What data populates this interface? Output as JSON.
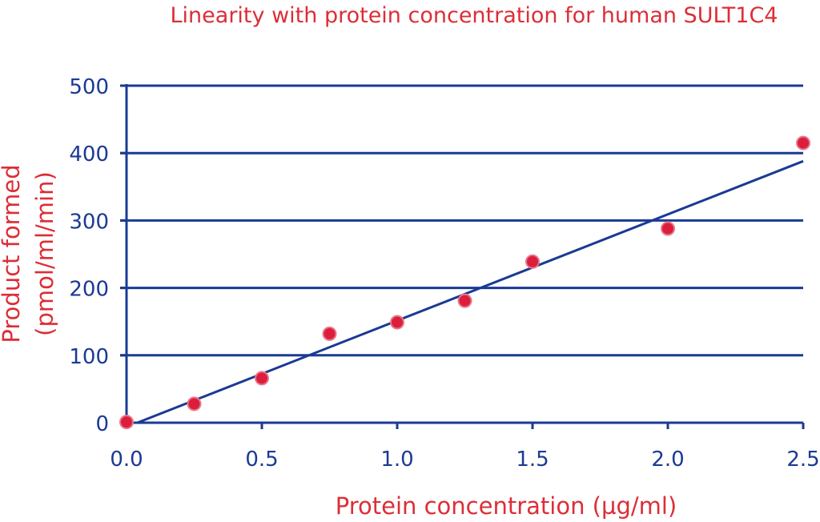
{
  "colors": {
    "axis": "#1a3a94",
    "text_accent": "#dc2e37",
    "point_fill": "#dc1e3c",
    "point_stroke": "#e7788a",
    "background": "#ffffff"
  },
  "chart_data": {
    "type": "scatter",
    "title": "Linearity with protein concentration for human SULT1C4",
    "xlabel": "Protein concentration (µg/ml)",
    "ylabel_lines": [
      "Product formed",
      "(pmol/ml/min)"
    ],
    "xlim": [
      0,
      2.5
    ],
    "ylim": [
      0,
      500
    ],
    "x_ticks": [
      "0.0",
      "0.5",
      "1.0",
      "1.5",
      "2.0",
      "2.5"
    ],
    "y_ticks": [
      "0",
      "100",
      "200",
      "300",
      "400",
      "500"
    ],
    "grid": "horizontal",
    "series": [
      {
        "x": [
          0,
          0.25,
          0.5,
          0.75,
          1.0,
          1.25,
          1.5,
          2.0,
          2.5
        ],
        "y": [
          1,
          28,
          66,
          132,
          149,
          181,
          239,
          288,
          415
        ]
      }
    ],
    "fit_line": {
      "x": [
        0.04,
        2.5
      ],
      "y": [
        0,
        388
      ]
    }
  }
}
